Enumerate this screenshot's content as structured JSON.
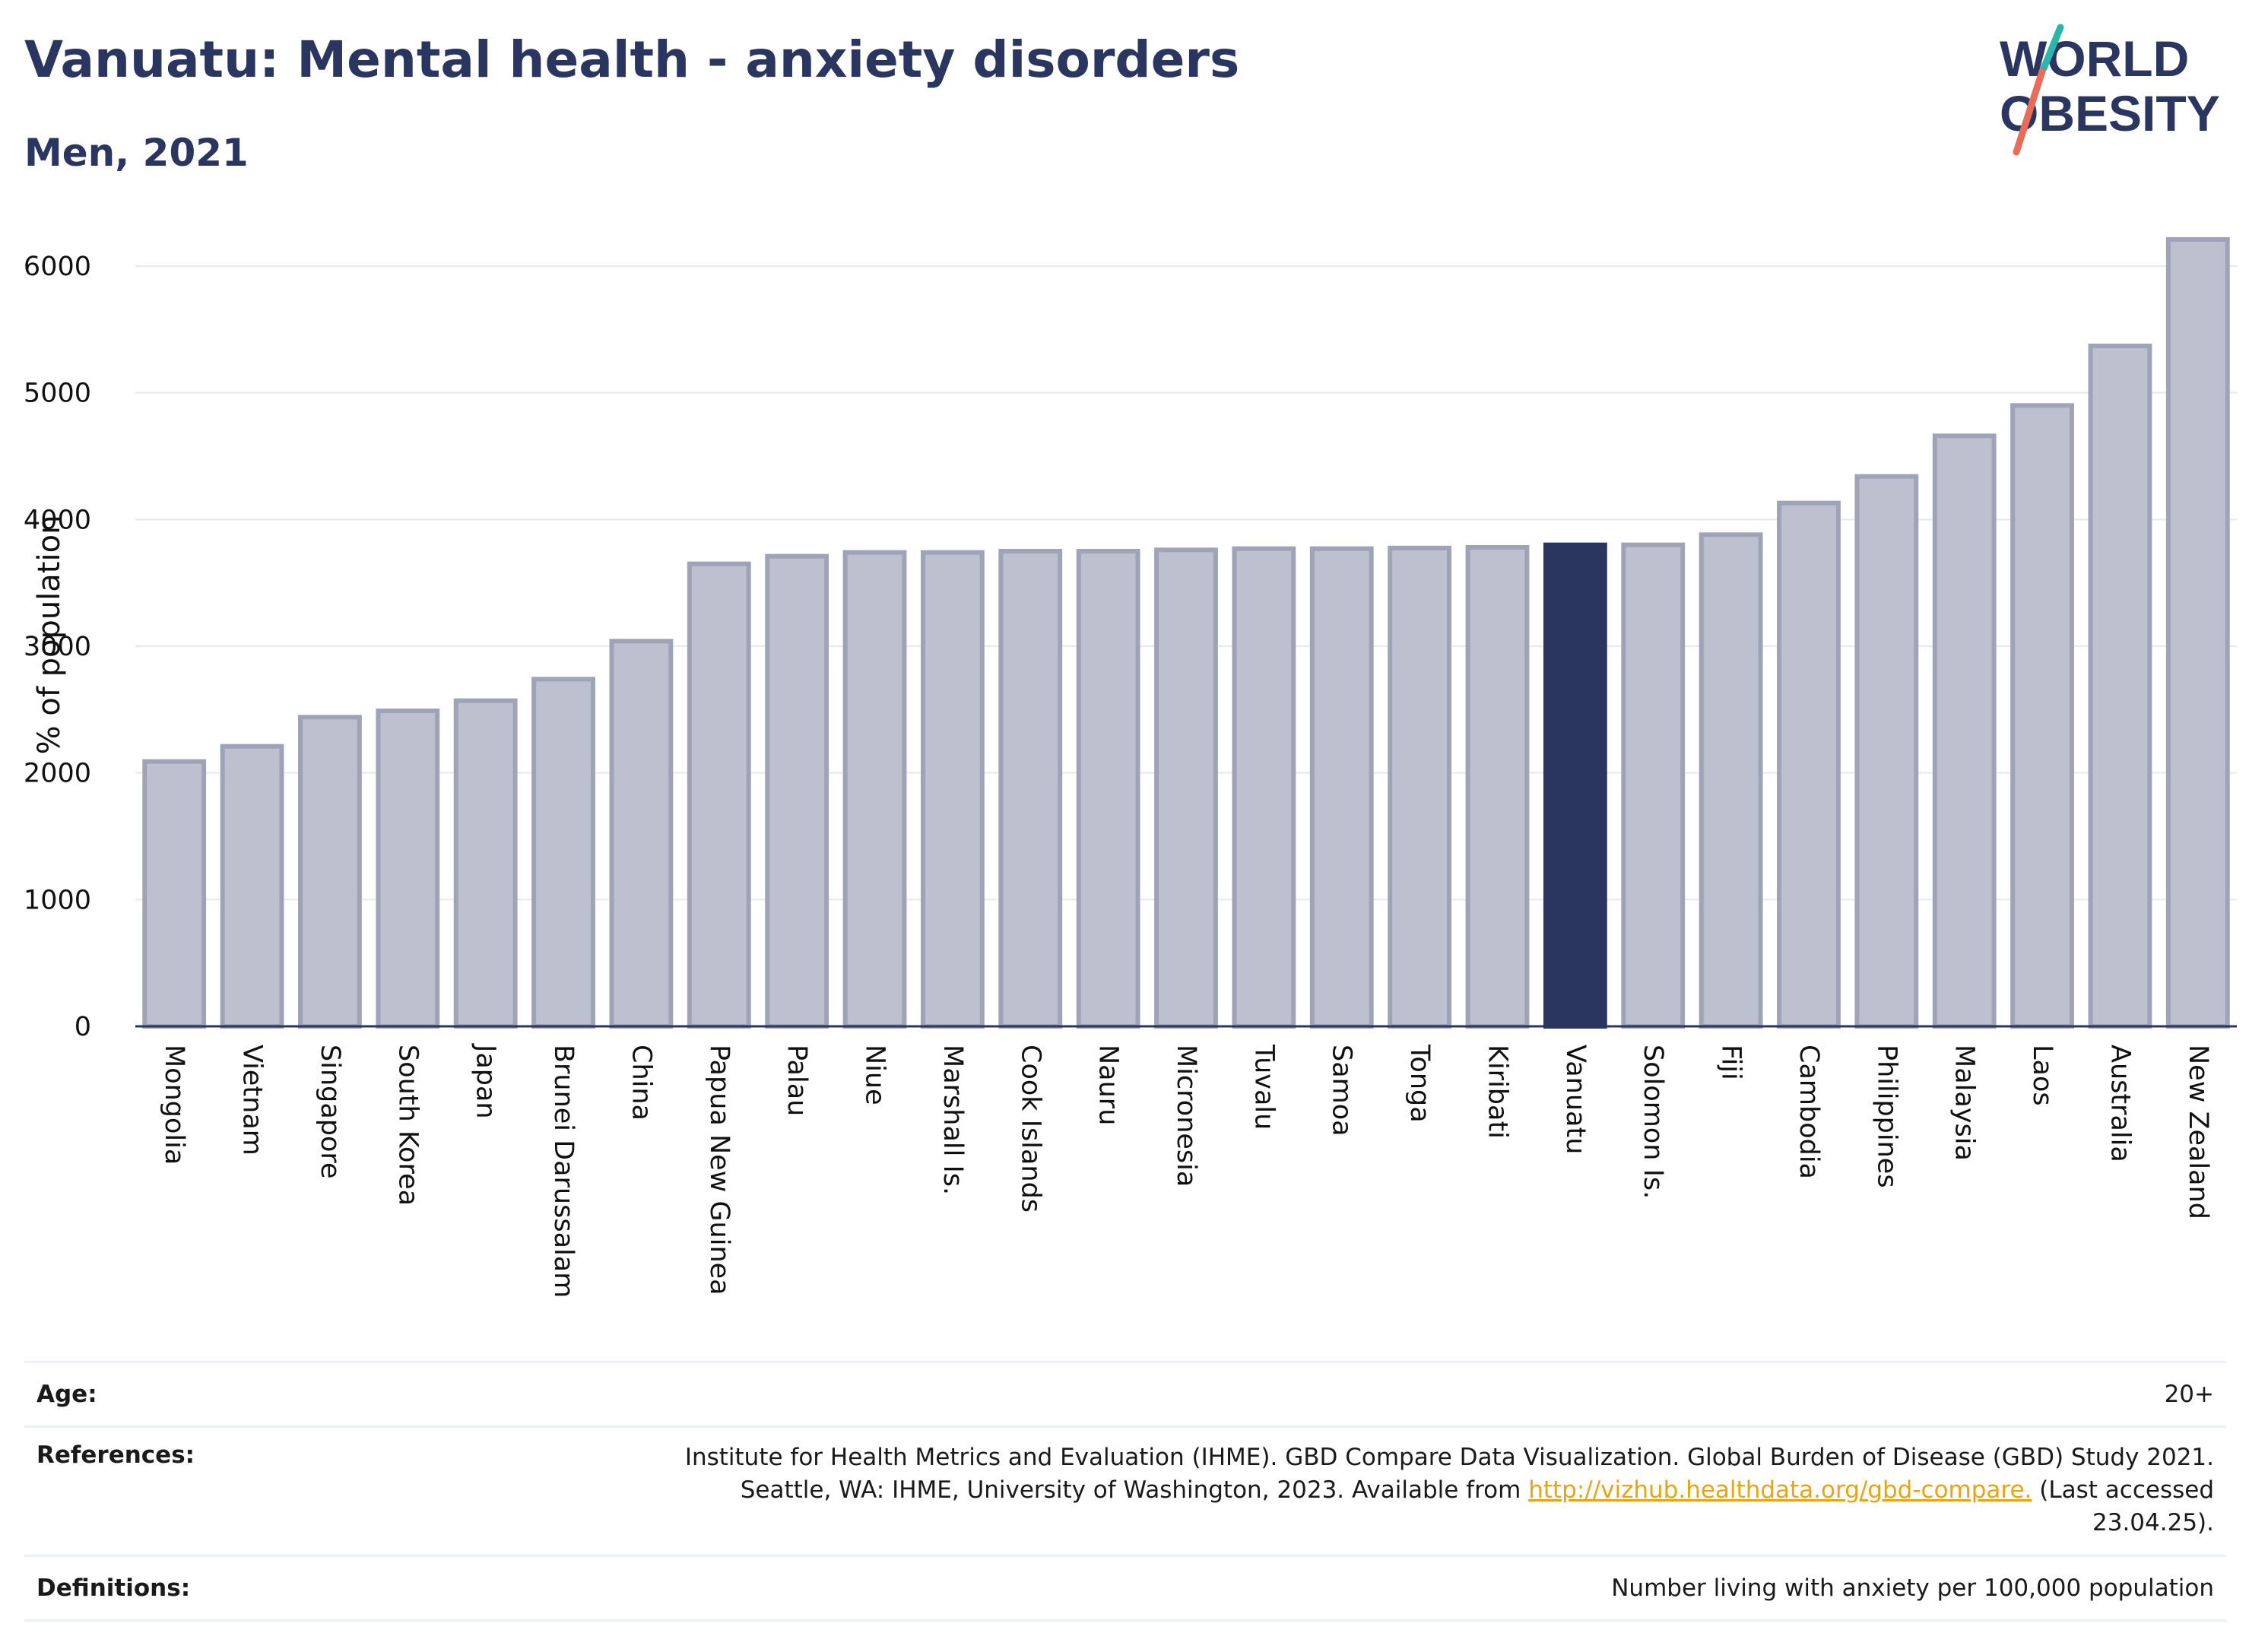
{
  "title": "Vanuatu: Mental health - anxiety disorders",
  "subtitle": "Men, 2021",
  "logo": {
    "line1": "WORLD",
    "line2": "OBESITY",
    "slash_colors": [
      "#2ab7a9",
      "#e76d5a"
    ],
    "text_color": "#2a3560"
  },
  "colors": {
    "bar": "#bcc0cf",
    "bar_border": "#9ea3b8",
    "highlight": "#2a3560",
    "grid": "#e6e8ee",
    "axis": "#2a3560"
  },
  "chart_data": {
    "type": "bar",
    "ylabel": "% of population",
    "ylim": [
      0,
      6300
    ],
    "yticks": [
      0,
      1000,
      2000,
      3000,
      4000,
      5000,
      6000
    ],
    "highlight": "Vanuatu",
    "categories": [
      "Mongolia",
      "Vietnam",
      "Singapore",
      "South Korea",
      "Japan",
      "Brunei Darussalam",
      "China",
      "Papua New Guinea",
      "Palau",
      "Niue",
      "Marshall Is.",
      "Cook Islands",
      "Nauru",
      "Micronesia",
      "Tuvalu",
      "Samoa",
      "Tonga",
      "Kiribati",
      "Vanuatu",
      "Solomon Is.",
      "Fiji",
      "Cambodia",
      "Philippines",
      "Malaysia",
      "Laos",
      "Australia",
      "New Zealand"
    ],
    "values": [
      2090,
      2210,
      2440,
      2490,
      2570,
      2740,
      3040,
      3650,
      3710,
      3740,
      3740,
      3750,
      3750,
      3760,
      3770,
      3770,
      3775,
      3780,
      3800,
      3800,
      3880,
      4130,
      4340,
      4660,
      4900,
      5370,
      6210
    ]
  },
  "footer": {
    "age_label": "Age:",
    "age_value": "20+",
    "references_label": "References:",
    "references_line1": "Institute for Health Metrics and Evaluation (IHME). GBD Compare Data Visualization. Global Burden of Disease (GBD) Study 2021.",
    "references_line2a": "Seattle, WA: IHME, University of Washington, 2023. Available from ",
    "references_link": "http://vizhub.healthdata.org/gbd-compare.",
    "references_line2b": " (Last accessed",
    "references_line3": "23.04.25).",
    "definitions_label": "Definitions:",
    "definitions_value": "Number living with anxiety per 100,000 population"
  }
}
